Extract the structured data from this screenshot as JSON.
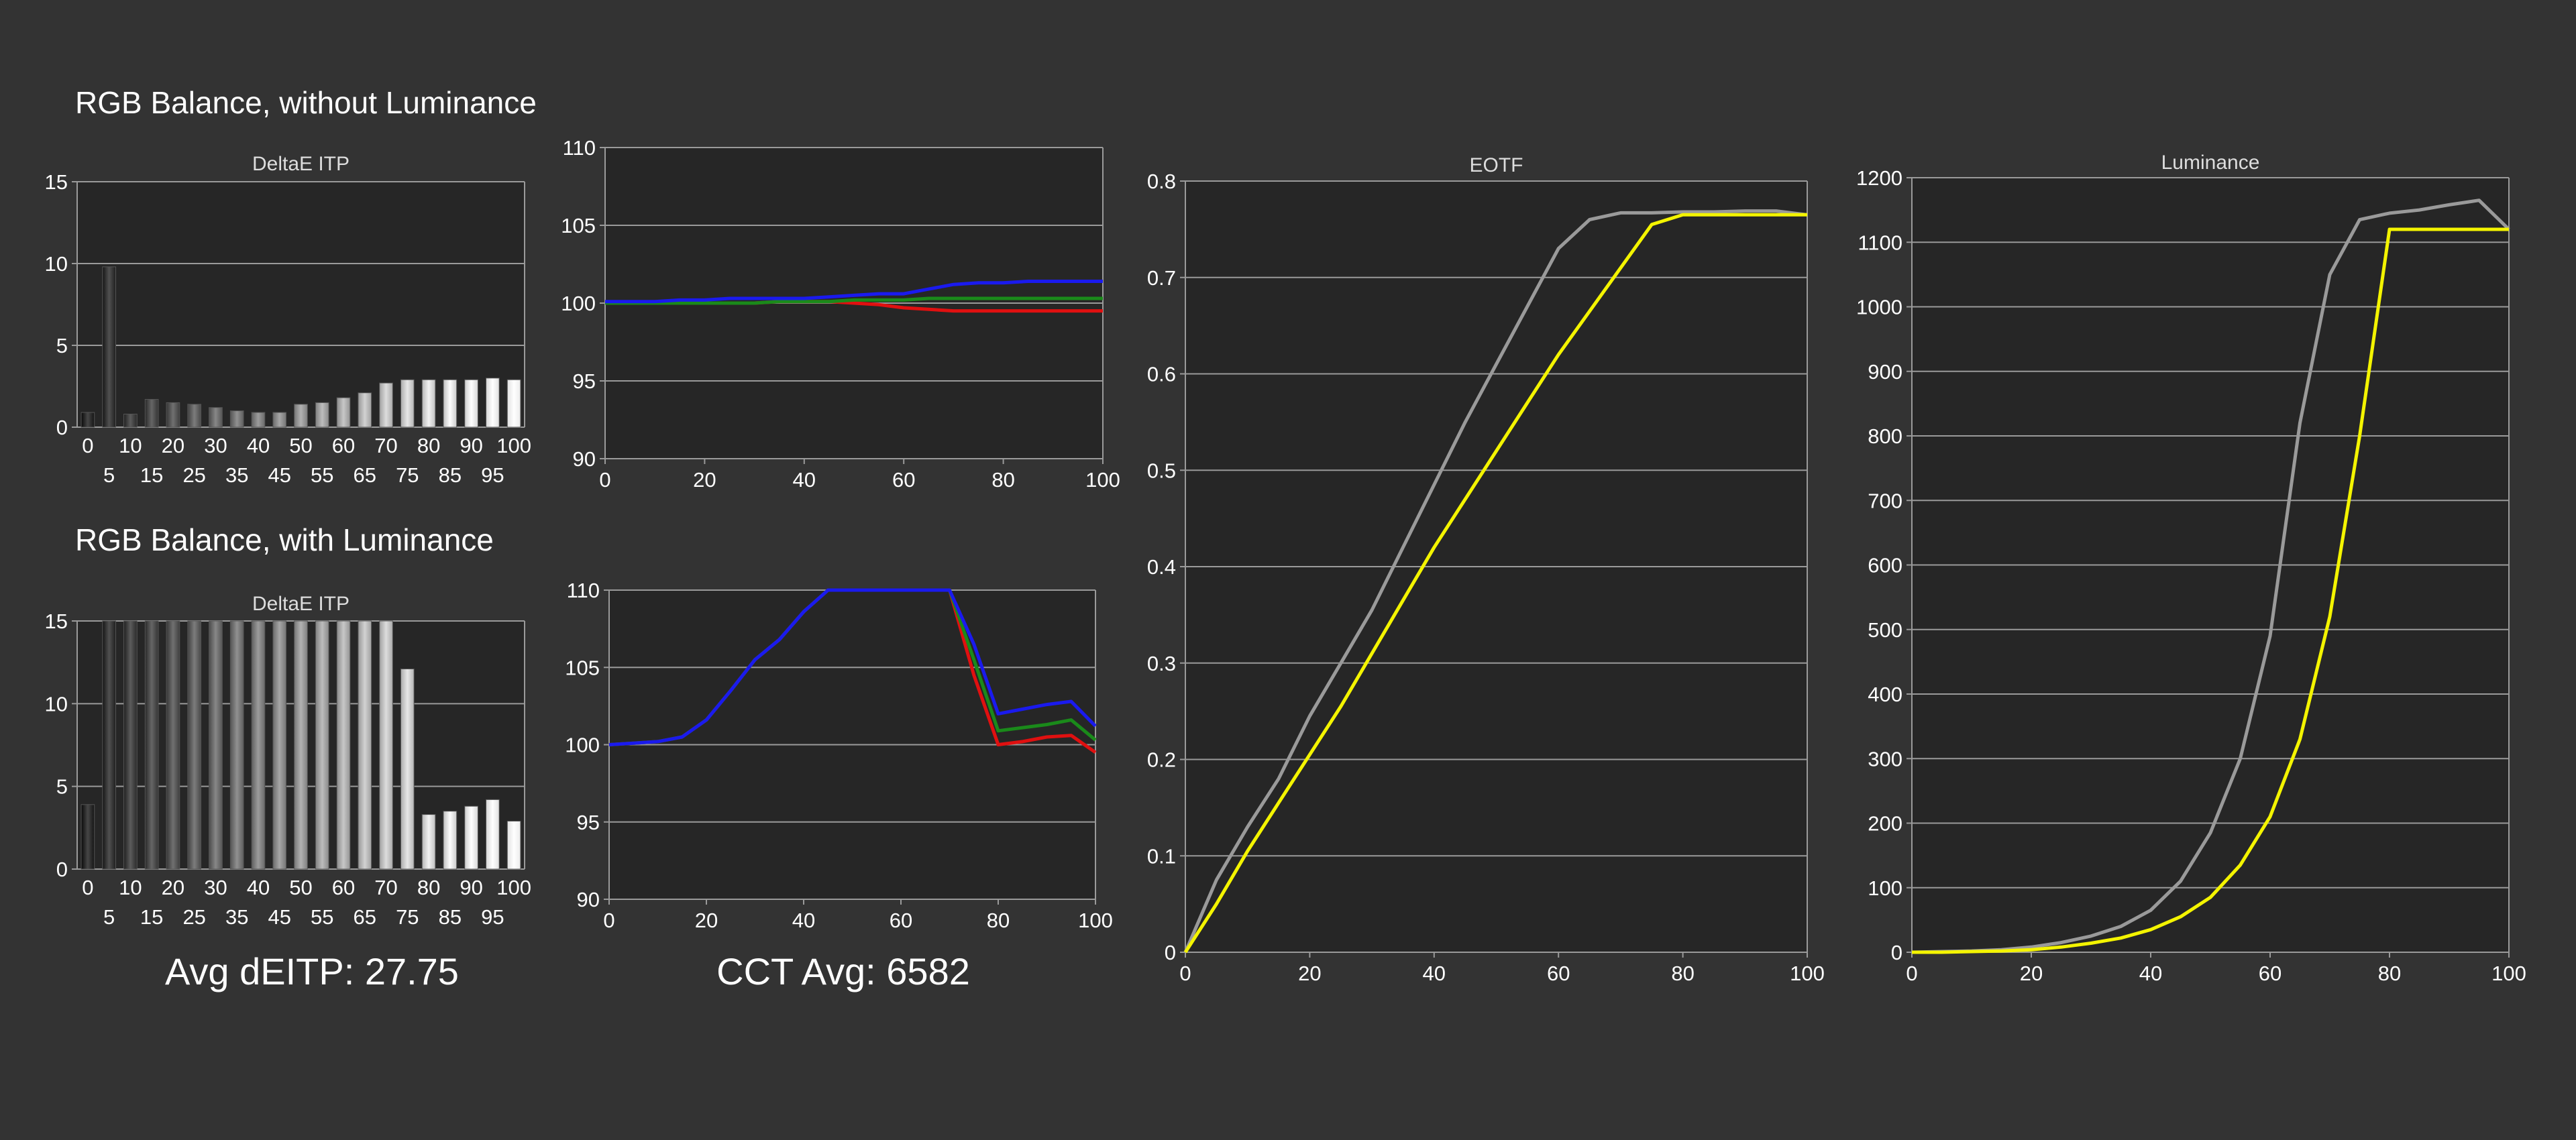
{
  "sections": {
    "without_luminance": "RGB Balance, without Luminance",
    "with_luminance": "RGB Balance, with Luminance"
  },
  "averages": {
    "deitp": "Avg dEITP: 27.75",
    "cct": "CCT Avg: 6582"
  },
  "colors": {
    "background": "#333333",
    "plot_bg": "#262626",
    "grid": "#9a9a9a",
    "red": "#e01010",
    "green": "#1a8a1a",
    "blue": "#1a1aee",
    "yellow": "#f4f400",
    "gray": "#9a9a9a"
  },
  "chart_data": [
    {
      "id": "deitp-without-luminance",
      "type": "bar",
      "title": "DeltaE ITP",
      "categories": [
        "0",
        "5",
        "10",
        "15",
        "20",
        "25",
        "30",
        "35",
        "40",
        "45",
        "50",
        "55",
        "60",
        "65",
        "70",
        "75",
        "80",
        "85",
        "90",
        "95",
        "100"
      ],
      "values": [
        0.9,
        9.8,
        0.8,
        1.7,
        1.5,
        1.4,
        1.2,
        1.0,
        0.9,
        0.9,
        1.4,
        1.5,
        1.8,
        2.1,
        2.7,
        2.9,
        2.9,
        2.9,
        2.9,
        3.0,
        2.9
      ],
      "ylim": [
        0,
        15
      ],
      "yticks": [
        0,
        5,
        10,
        15
      ],
      "xticks_upper": [
        "0",
        "10",
        "20",
        "30",
        "40",
        "50",
        "60",
        "70",
        "80",
        "90",
        "100"
      ],
      "xticks_lower": [
        "5",
        "15",
        "25",
        "35",
        "45",
        "55",
        "65",
        "75",
        "85",
        "95"
      ],
      "grid": true
    },
    {
      "id": "rgb-balance-without-luminance",
      "type": "line",
      "x": [
        0,
        5,
        10,
        15,
        20,
        25,
        30,
        35,
        40,
        45,
        50,
        55,
        60,
        65,
        70,
        75,
        80,
        85,
        90,
        95,
        100
      ],
      "series": [
        {
          "color": "red",
          "values": [
            100.0,
            100.0,
            100.0,
            100.0,
            100.0,
            100.0,
            100.0,
            100.1,
            100.1,
            100.1,
            100.0,
            99.9,
            99.7,
            99.6,
            99.5,
            99.5,
            99.5,
            99.5,
            99.5,
            99.5,
            99.5
          ]
        },
        {
          "color": "green",
          "values": [
            100.0,
            100.0,
            100.0,
            100.0,
            100.0,
            100.0,
            100.0,
            100.1,
            100.1,
            100.1,
            100.2,
            100.2,
            100.2,
            100.3,
            100.3,
            100.3,
            100.3,
            100.3,
            100.3,
            100.3,
            100.3
          ]
        },
        {
          "color": "blue",
          "values": [
            100.1,
            100.1,
            100.1,
            100.2,
            100.2,
            100.3,
            100.3,
            100.3,
            100.3,
            100.4,
            100.5,
            100.6,
            100.6,
            100.9,
            101.2,
            101.3,
            101.3,
            101.4,
            101.4,
            101.4,
            101.4
          ]
        }
      ],
      "ylim": [
        90,
        110
      ],
      "yticks": [
        90,
        95,
        100,
        105,
        110
      ],
      "xlim": [
        0,
        100
      ],
      "xticks": [
        0,
        20,
        40,
        60,
        80,
        100
      ],
      "grid": true
    },
    {
      "id": "deitp-with-luminance",
      "type": "bar",
      "title": "DeltaE ITP",
      "categories": [
        "0",
        "5",
        "10",
        "15",
        "20",
        "25",
        "30",
        "35",
        "40",
        "45",
        "50",
        "55",
        "60",
        "65",
        "70",
        "75",
        "80",
        "85",
        "90",
        "95",
        "100"
      ],
      "values": [
        3.9,
        15,
        15,
        15,
        15,
        15,
        15,
        15,
        15,
        15,
        15,
        15,
        15,
        15,
        15,
        12.1,
        3.3,
        3.5,
        3.8,
        4.2,
        2.9
      ],
      "ylim": [
        0,
        15
      ],
      "yticks": [
        0,
        5,
        10,
        15
      ],
      "xticks_upper": [
        "0",
        "10",
        "20",
        "30",
        "40",
        "50",
        "60",
        "70",
        "80",
        "90",
        "100"
      ],
      "xticks_lower": [
        "5",
        "15",
        "25",
        "35",
        "45",
        "55",
        "65",
        "75",
        "85",
        "95"
      ],
      "grid": true
    },
    {
      "id": "rgb-balance-with-luminance",
      "type": "line",
      "x": [
        0,
        5,
        10,
        15,
        20,
        25,
        30,
        35,
        40,
        45,
        50,
        55,
        60,
        65,
        70,
        75,
        80,
        85,
        90,
        95,
        100
      ],
      "series": [
        {
          "color": "red",
          "values": [
            100.0,
            100.1,
            100.2,
            100.5,
            101.6,
            103.5,
            105.5,
            106.8,
            108.6,
            110.0,
            110.0,
            110.0,
            110.0,
            110.0,
            110.0,
            104.5,
            100.0,
            100.2,
            100.5,
            100.6,
            99.5
          ]
        },
        {
          "color": "green",
          "values": [
            100.0,
            100.1,
            100.2,
            100.5,
            101.6,
            103.5,
            105.5,
            106.8,
            108.6,
            110.0,
            110.0,
            110.0,
            110.0,
            110.0,
            110.0,
            105.5,
            100.9,
            101.1,
            101.3,
            101.6,
            100.3
          ]
        },
        {
          "color": "blue",
          "values": [
            100.0,
            100.1,
            100.2,
            100.5,
            101.6,
            103.5,
            105.5,
            106.8,
            108.6,
            110.0,
            110.0,
            110.0,
            110.0,
            110.0,
            110.0,
            106.5,
            102.0,
            102.3,
            102.6,
            102.8,
            101.2
          ]
        }
      ],
      "ylim": [
        90,
        110
      ],
      "yticks": [
        90,
        95,
        100,
        105,
        110
      ],
      "xlim": [
        0,
        100
      ],
      "xticks": [
        0,
        20,
        40,
        60,
        80,
        100
      ],
      "grid": true
    },
    {
      "id": "eotf",
      "type": "line",
      "title": "EOTF",
      "x": [
        0,
        5,
        10,
        15,
        20,
        25,
        30,
        35,
        40,
        45,
        50,
        55,
        60,
        65,
        70,
        75,
        80,
        85,
        90,
        95,
        100
      ],
      "series": [
        {
          "color": "gray",
          "values": [
            0.0,
            0.075,
            0.13,
            0.18,
            0.245,
            0.3,
            0.355,
            0.42,
            0.485,
            0.55,
            0.61,
            0.67,
            0.73,
            0.76,
            0.767,
            0.767,
            0.768,
            0.768,
            0.769,
            0.769,
            0.765
          ]
        },
        {
          "color": "yellow",
          "values": [
            0.0,
            0.05,
            0.105,
            0.155,
            0.205,
            0.255,
            0.31,
            0.365,
            0.42,
            0.47,
            0.52,
            0.57,
            0.62,
            0.665,
            0.71,
            0.755,
            0.765,
            0.765,
            0.765,
            0.765,
            0.765
          ]
        }
      ],
      "ylim": [
        0,
        0.8
      ],
      "yticks": [
        "0",
        "0.1",
        "0.2",
        "0.3",
        "0.4",
        "0.5",
        "0.6",
        "0.7",
        "0.8"
      ],
      "xlim": [
        0,
        100
      ],
      "xticks": [
        0,
        20,
        40,
        60,
        80,
        100
      ],
      "grid": true
    },
    {
      "id": "luminance",
      "type": "line",
      "title": "Luminance",
      "x": [
        0,
        5,
        10,
        15,
        20,
        25,
        30,
        35,
        40,
        45,
        50,
        55,
        60,
        65,
        70,
        75,
        80,
        85,
        90,
        95,
        100
      ],
      "series": [
        {
          "color": "gray",
          "values": [
            0,
            1,
            2,
            4,
            8,
            15,
            25,
            40,
            65,
            110,
            185,
            300,
            490,
            820,
            1050,
            1135,
            1145,
            1150,
            1158,
            1165,
            1120
          ]
        },
        {
          "color": "yellow",
          "values": [
            0,
            0,
            1,
            2,
            4,
            8,
            14,
            22,
            35,
            55,
            85,
            135,
            210,
            330,
            520,
            800,
            1120,
            1120,
            1120,
            1120,
            1120
          ]
        }
      ],
      "ylim": [
        0,
        1200
      ],
      "yticks": [
        0,
        100,
        200,
        300,
        400,
        500,
        600,
        700,
        800,
        900,
        1000,
        1100,
        1200
      ],
      "xlim": [
        0,
        100
      ],
      "xticks": [
        0,
        20,
        40,
        60,
        80,
        100
      ],
      "grid": true
    }
  ]
}
